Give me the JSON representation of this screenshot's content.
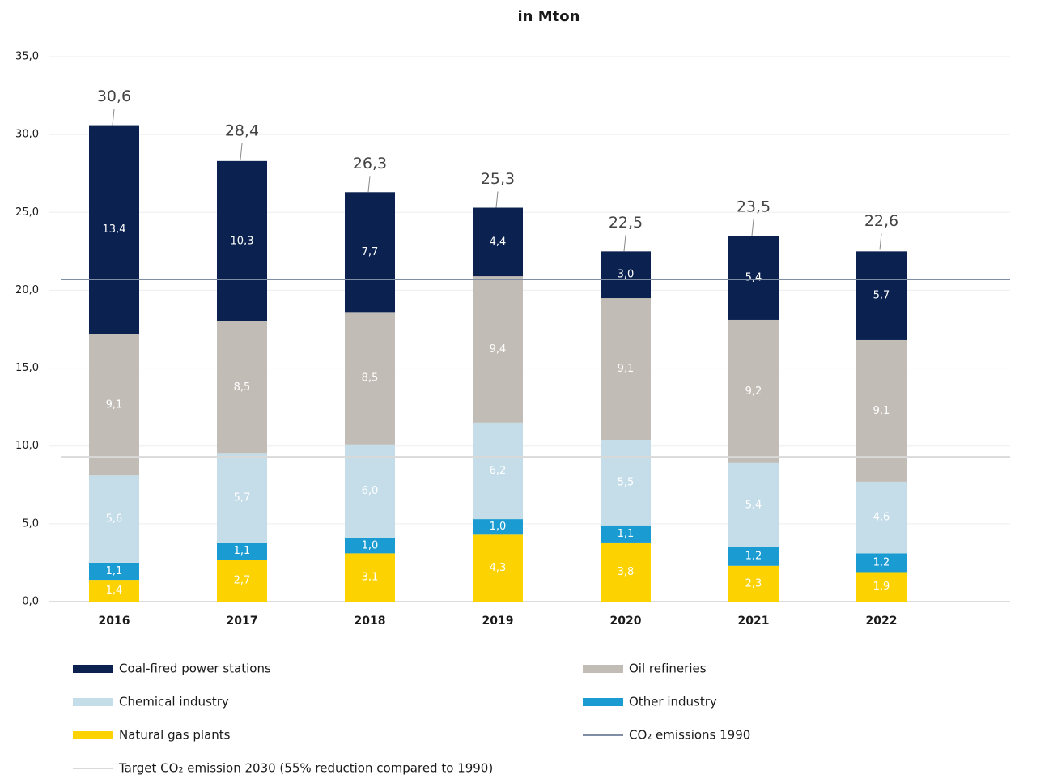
{
  "chart_data": {
    "type": "stacked_bar",
    "title": "in Mton",
    "categories": [
      "2016",
      "2017",
      "2018",
      "2019",
      "2020",
      "2021",
      "2022"
    ],
    "series": [
      {
        "name": "Natural gas plants",
        "color": "#fcd200",
        "values": [
          1.4,
          2.7,
          3.1,
          4.3,
          3.8,
          2.3,
          1.9
        ],
        "value_labels": [
          "1,4",
          "2,7",
          "3,1",
          "4,3",
          "3,8",
          "2,3",
          "1,9"
        ]
      },
      {
        "name": "Other industry",
        "color": "#1a9bd2",
        "values": [
          1.1,
          1.1,
          1.0,
          1.0,
          1.1,
          1.2,
          1.2
        ],
        "value_labels": [
          "1,1",
          "1,1",
          "1,0",
          "1,0",
          "1,1",
          "1,2",
          "1,2"
        ]
      },
      {
        "name": "Chemical industry",
        "color": "#c5dde9",
        "values": [
          5.6,
          5.7,
          6.0,
          6.2,
          5.5,
          5.4,
          4.6
        ],
        "value_labels": [
          "5,6",
          "5,7",
          "6,0",
          "6,2",
          "5,5",
          "5,4",
          "4,6"
        ]
      },
      {
        "name": "Oil refineries",
        "color": "#c2bcb6",
        "values": [
          9.1,
          8.5,
          8.5,
          9.4,
          9.1,
          9.2,
          9.1
        ],
        "value_labels": [
          "9,1",
          "8,5",
          "8,5",
          "9,4",
          "9,1",
          "9,2",
          "9,1"
        ]
      },
      {
        "name": "Coal-fired power stations",
        "color": "#0b2250",
        "values": [
          13.4,
          10.3,
          7.7,
          4.4,
          3.0,
          5.4,
          5.7
        ],
        "value_labels": [
          "13,4",
          "10,3",
          "7,7",
          "4,4",
          "3,0",
          "5,4",
          "5,7"
        ]
      }
    ],
    "totals": {
      "values": [
        30.6,
        28.4,
        26.3,
        25.3,
        22.5,
        23.5,
        22.6
      ],
      "value_labels": [
        "30,6",
        "28,4",
        "26,3",
        "25,3",
        "22,5",
        "23,5",
        "22,6"
      ]
    },
    "reference_lines": [
      {
        "name": "CO₂ emissions 1990",
        "value": 20.7,
        "color": "#7f8ea3"
      },
      {
        "name": "Target CO₂ emission 2030 (55% reduction compared to 1990)",
        "value": 9.3,
        "color": "#d9d9d9"
      }
    ],
    "ylim": [
      0,
      35
    ],
    "yticks": [
      {
        "value": 0,
        "label": "0,0"
      },
      {
        "value": 5,
        "label": "5,0"
      },
      {
        "value": 10,
        "label": "10,0"
      },
      {
        "value": 15,
        "label": "15,0"
      },
      {
        "value": 20,
        "label": "20,0"
      },
      {
        "value": 25,
        "label": "25,0"
      },
      {
        "value": 30,
        "label": "30,0"
      },
      {
        "value": 35,
        "label": "35,0"
      }
    ],
    "grid": true
  }
}
